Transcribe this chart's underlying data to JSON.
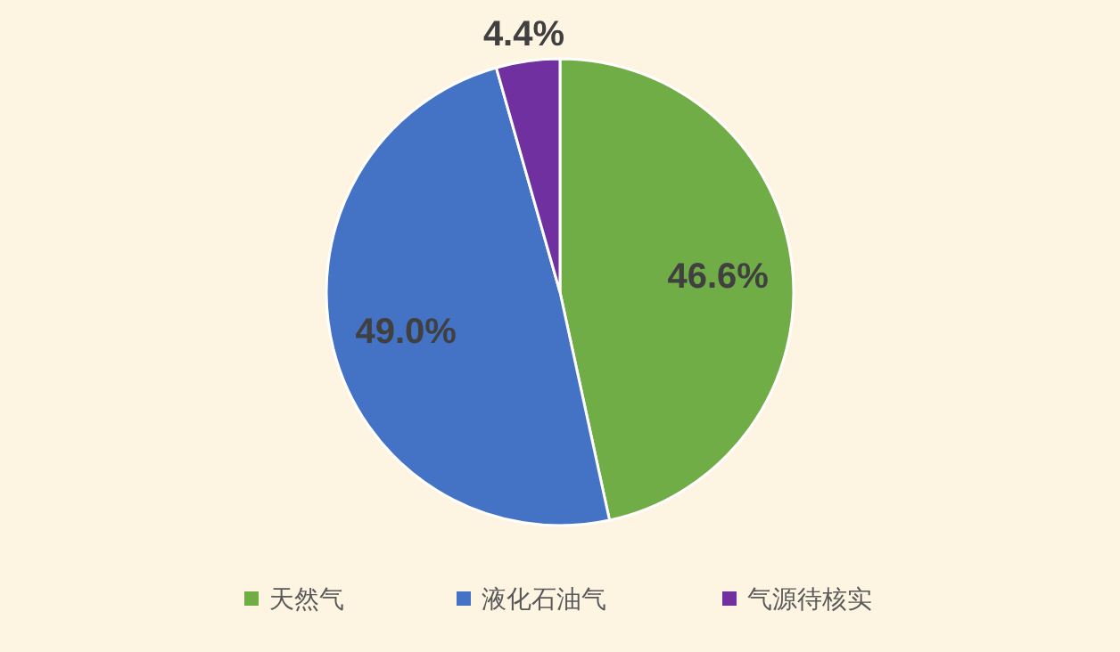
{
  "chart_data": {
    "type": "pie",
    "categories": [
      "天然气",
      "液化石油气",
      "气源待核实"
    ],
    "values": [
      46.6,
      49.0,
      4.4
    ],
    "colors": [
      "#70ad47",
      "#4472c4",
      "#7030a0"
    ],
    "value_labels": [
      "46.6%",
      "49.0%",
      "4.4%"
    ],
    "legend": "bottom"
  }
}
